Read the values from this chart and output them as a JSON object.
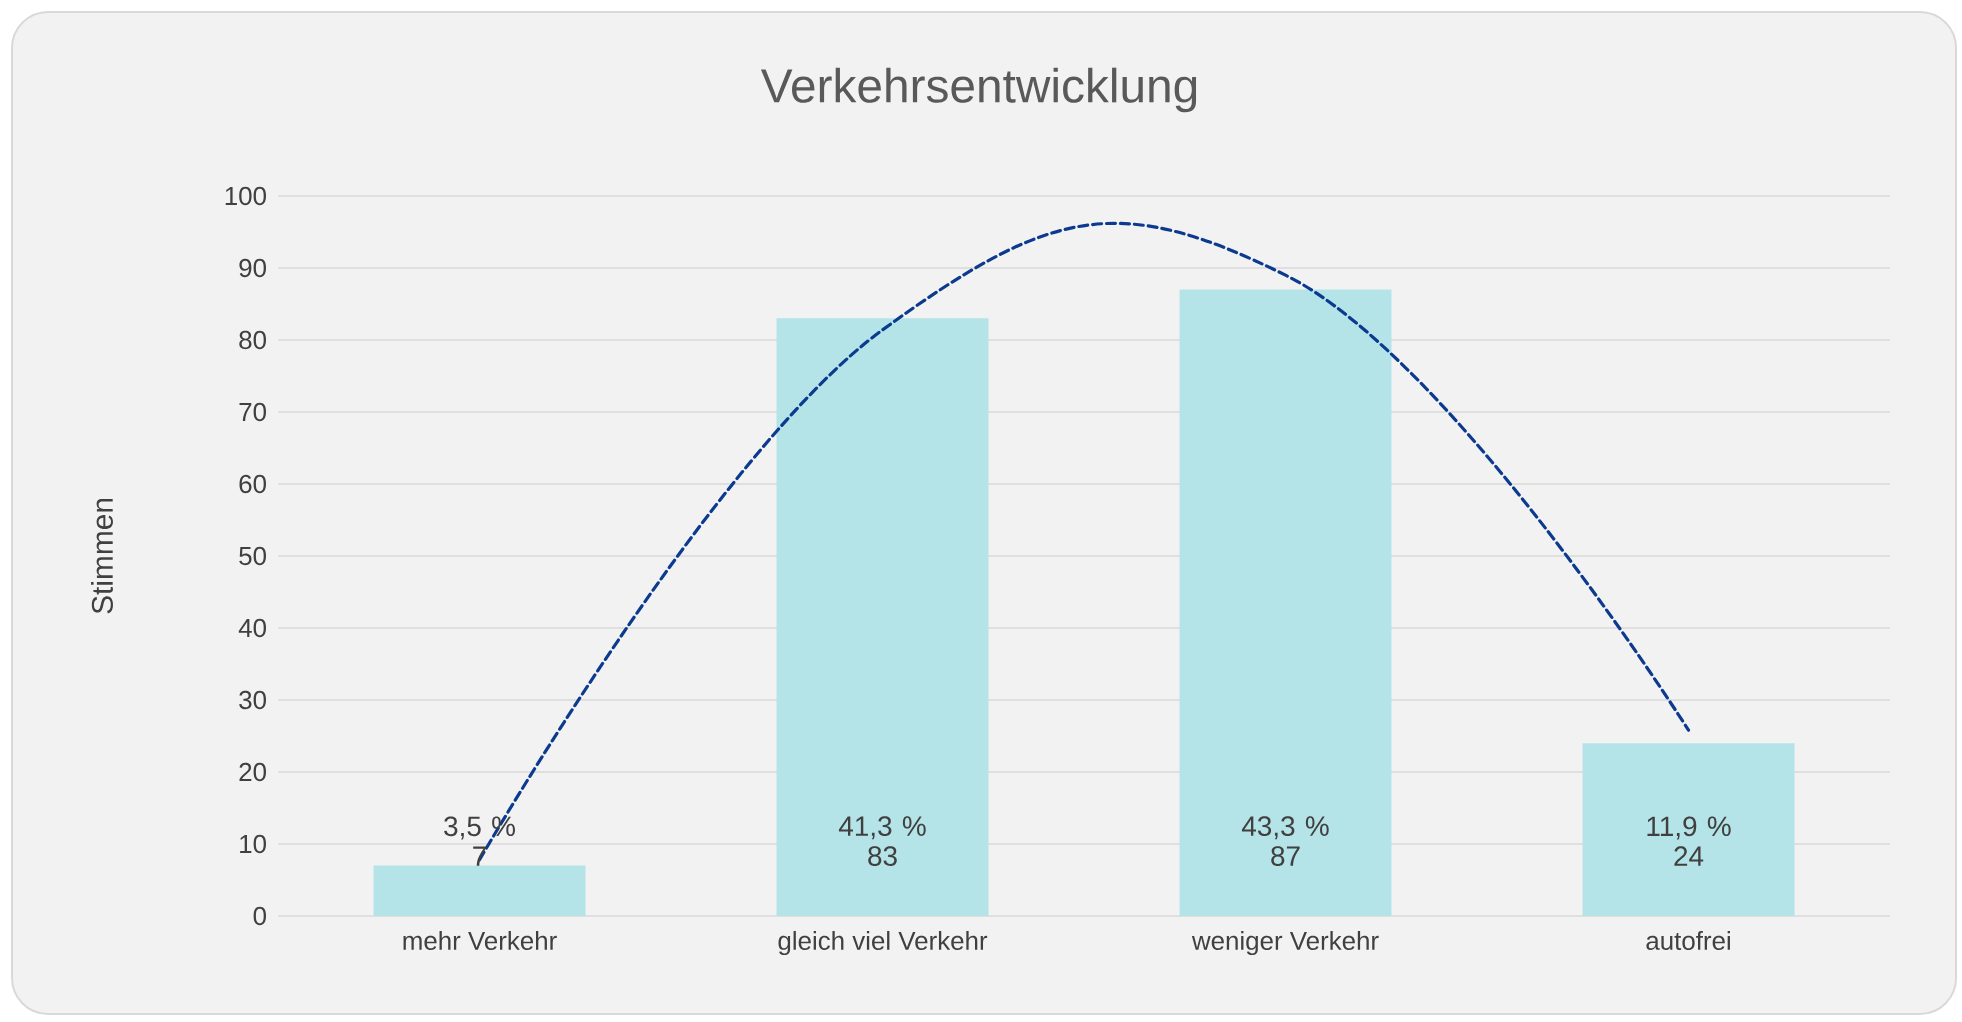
{
  "chart_data": {
    "type": "bar",
    "title": "Verkehrsentwicklung",
    "ylabel": "Stimmen",
    "categories": [
      "mehr Verkehr",
      "gleich viel Verkehr",
      "weniger Verkehr",
      "autofrei"
    ],
    "values": [
      7,
      83,
      87,
      24
    ],
    "color": "#b4e3e8",
    "value_labels": [
      "3,5 %\n7",
      "41,3 %\n83",
      "43,3 %\n87",
      "11,9 %\n24"
    ],
    "series": [
      {
        "type": "line",
        "color": "#0b3a8f",
        "line_style": "dashed",
        "values": [
          7.8,
          81.4,
          89,
          25.8
        ]
      }
    ],
    "ylim": [
      0,
      100
    ],
    "yticks": [
      0,
      10,
      20,
      30,
      40,
      50,
      60,
      70,
      80,
      90,
      100
    ],
    "grid": "y"
  }
}
